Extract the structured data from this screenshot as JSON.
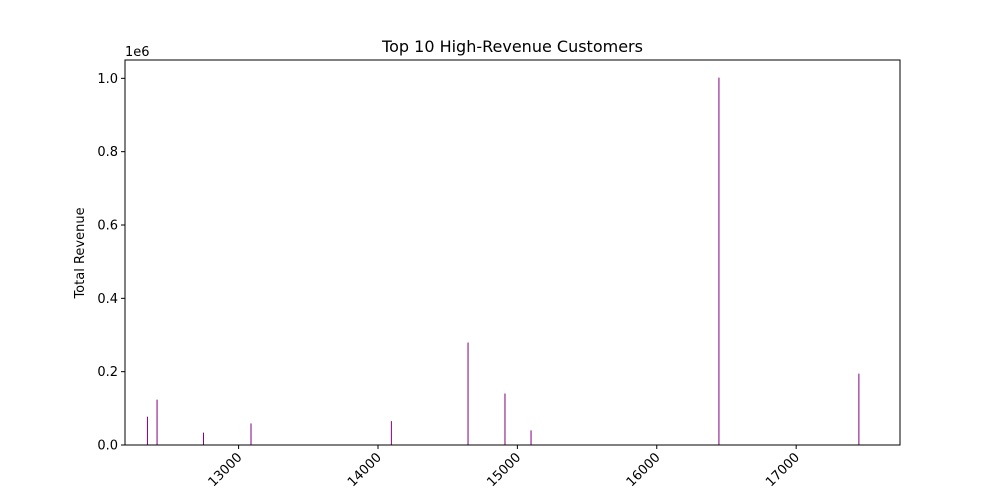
{
  "chart_data": {
    "type": "bar",
    "title": "Top 10 High-Revenue Customers",
    "xlabel": "",
    "ylabel": "Total Revenue",
    "y_offset_label": "1e6",
    "y_scale": 1000000,
    "xlim": [
      12185,
      17745
    ],
    "ylim": [
      0,
      1050000
    ],
    "x_ticks": [
      13000,
      14000,
      15000,
      16000,
      17000
    ],
    "x_tick_labels": [
      "13000",
      "14000",
      "15000",
      "16000",
      "17000"
    ],
    "x_tick_rotation_deg": 45,
    "y_ticks": [
      0,
      200000,
      400000,
      600000,
      800000,
      1000000
    ],
    "y_tick_labels": [
      "0.0",
      "0.2",
      "0.4",
      "0.6",
      "0.8",
      "1.0"
    ],
    "grid": false,
    "bar_color": "#800080",
    "series": [
      {
        "x": [
          12346,
          12415,
          12748,
          13089,
          14096,
          14646,
          14911,
          15098,
          17450,
          16446
        ],
        "values": [
          77183,
          123725,
          33719,
          58825,
          65164,
          279489,
          140450,
          39916,
          194550,
          1002000
        ]
      }
    ]
  }
}
